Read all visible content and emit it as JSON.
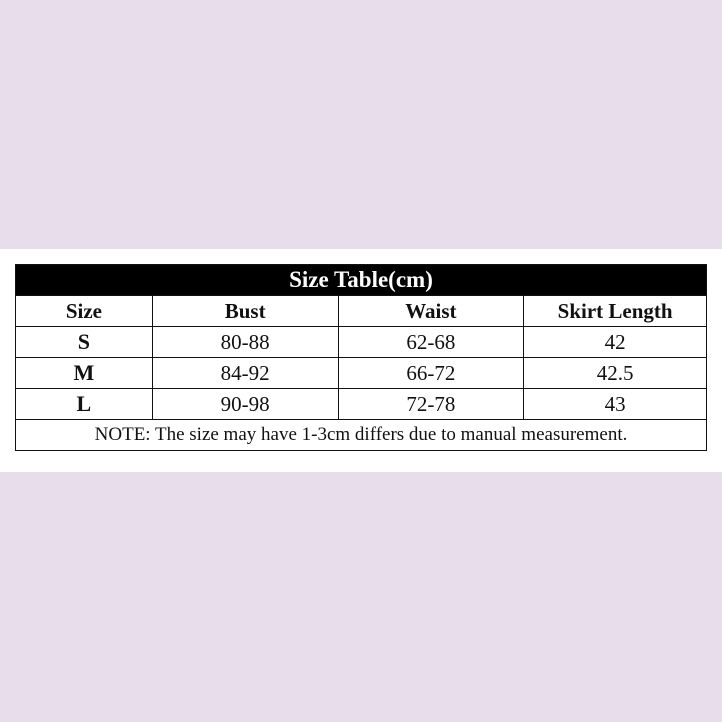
{
  "title": "Size Table(cm)",
  "headers": [
    "Size",
    "Bust",
    "Waist",
    "Skirt Length"
  ],
  "rows": [
    [
      "S",
      "80-88",
      "62-68",
      "42"
    ],
    [
      "M",
      "84-92",
      "66-72",
      "42.5"
    ],
    [
      "L",
      "90-98",
      "72-78",
      "43"
    ]
  ],
  "note": "NOTE: The size may have 1-3cm differs due to manual measurement.",
  "colors": {
    "background": "#e7ddeb",
    "title_bar": "#000000"
  }
}
